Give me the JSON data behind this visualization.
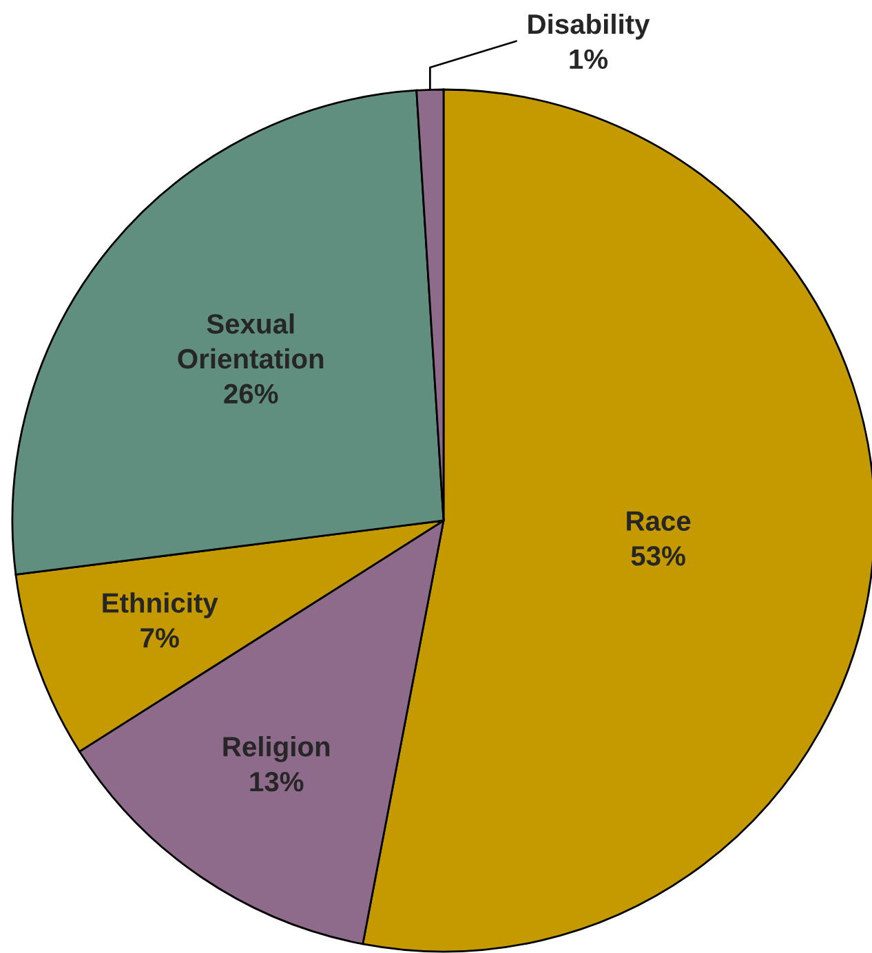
{
  "chart_data": {
    "type": "pie",
    "categories": [
      "Race",
      "Religion",
      "Ethnicity",
      "Sexual\nOrientation",
      "Disability"
    ],
    "values": [
      53,
      13,
      7,
      26,
      1
    ],
    "value_labels": [
      "53%",
      "13%",
      "7%",
      "26%",
      "1%"
    ],
    "colors": [
      "#c49a00",
      "#8e6b8a",
      "#c49a00",
      "#608f80",
      "#8e6b8a"
    ]
  }
}
